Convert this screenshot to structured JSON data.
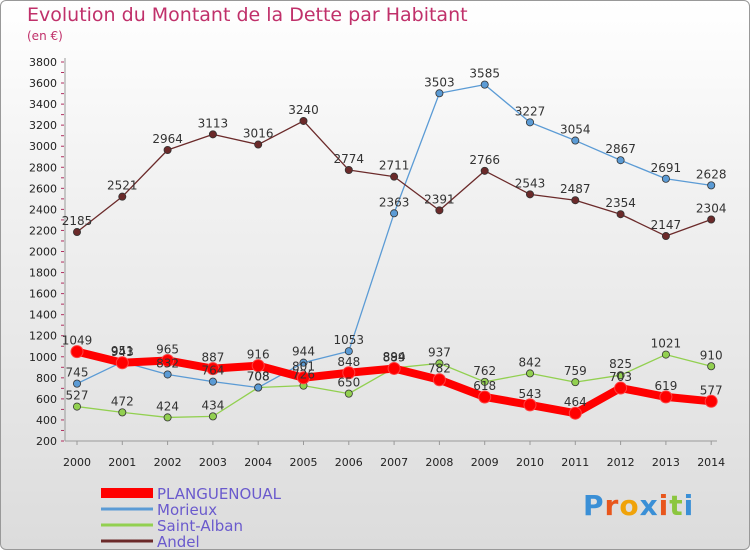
{
  "title": "Evolution du Montant de la Dette par Habitant",
  "subtitle": "(en €)",
  "logo": {
    "text": "Proxiti",
    "colors": [
      "#3a8fd6",
      "#e8561c",
      "#f0a30a",
      "#3a8fd6",
      "#e8561c",
      "#8cc63f",
      "#3a8fd6"
    ]
  },
  "chart_data": {
    "type": "line",
    "title": "Evolution du Montant de la Dette par Habitant",
    "subtitle": "(en €)",
    "x": [
      "2000",
      "2001",
      "2002",
      "2003",
      "2004",
      "2005",
      "2006",
      "2007",
      "2008",
      "2009",
      "2010",
      "2011",
      "2012",
      "2013",
      "2014"
    ],
    "ylim": [
      200,
      3800
    ],
    "yticks": [
      200,
      400,
      600,
      800,
      1000,
      1200,
      1400,
      1600,
      1800,
      2000,
      2200,
      2400,
      2600,
      2800,
      3000,
      3200,
      3400,
      3600,
      3800
    ],
    "grid": false,
    "legend_position": "bottom-left",
    "series": [
      {
        "name": "PLANGUENOUAL",
        "color": "#ff0000",
        "values": [
          1049,
          943,
          965,
          887,
          916,
          801,
          848,
          889,
          782,
          618,
          543,
          464,
          703,
          619,
          577
        ],
        "labels": [
          "1049",
          "943",
          "965",
          "887",
          "916",
          "801",
          "848",
          "889",
          "782",
          "618",
          "543",
          "464",
          "703",
          "619",
          "577"
        ]
      },
      {
        "name": "Morieux",
        "color": "#5b9bd5",
        "values": [
          745,
          951,
          832,
          764,
          708,
          944,
          1053,
          2363,
          3503,
          3585,
          3227,
          3054,
          2867,
          2691,
          2628
        ],
        "labels": [
          "745",
          "951",
          "832",
          "764",
          "708",
          "944",
          "1053",
          "2363",
          "3503",
          "3585",
          "3227",
          "3054",
          "2867",
          "2691",
          "2628"
        ]
      },
      {
        "name": "Saint-Alban",
        "color": "#92d050",
        "values": [
          527,
          472,
          424,
          434,
          708,
          726,
          650,
          894,
          937,
          762,
          842,
          759,
          825,
          1021,
          910
        ],
        "labels": [
          "527",
          "472",
          "424",
          "434",
          "708",
          "726",
          "650",
          "894",
          "937",
          "762",
          "842",
          "759",
          "825",
          "1021",
          "910"
        ]
      },
      {
        "name": "Andel",
        "color": "#6b2a2a",
        "values": [
          2185,
          2521,
          2964,
          3113,
          3016,
          3240,
          2774,
          2711,
          2391,
          2766,
          2543,
          2487,
          2354,
          2147,
          2304
        ],
        "labels": [
          "2185",
          "2521",
          "2964",
          "3113",
          "3016",
          "3240",
          "2774",
          "2711",
          "2391",
          "2766",
          "2543",
          "2487",
          "2354",
          "2147",
          "2304"
        ]
      }
    ]
  }
}
